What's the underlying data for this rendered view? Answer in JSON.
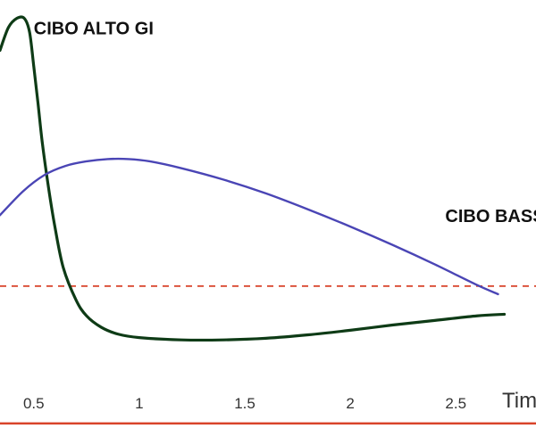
{
  "chart_data": {
    "type": "line",
    "xlabel": "Tim",
    "ylabel": "",
    "xlim": [
      0.34,
      2.88
    ],
    "ylim": [
      -0.62,
      1.25
    ],
    "grid": false,
    "legend": "none",
    "x_ticks": [
      {
        "value": 0.5,
        "label": "0.5"
      },
      {
        "value": 1,
        "label": "1"
      },
      {
        "value": 1.5,
        "label": "1.5"
      },
      {
        "value": 2,
        "label": "2"
      },
      {
        "value": 2.5,
        "label": "2.5"
      }
    ],
    "series": [
      {
        "name": "CIBO ALTO GI",
        "color": "#0e3b16",
        "x": [
          0.34,
          0.38,
          0.42,
          0.455,
          0.48,
          0.5,
          0.52,
          0.54,
          0.57,
          0.6,
          0.64,
          0.7,
          0.75,
          0.82,
          0.9,
          1.0,
          1.2,
          1.4,
          1.6,
          1.8,
          2.0,
          2.2,
          2.4,
          2.6,
          2.73
        ],
        "y": [
          1.03,
          1.13,
          1.17,
          1.17,
          1.11,
          0.96,
          0.8,
          0.63,
          0.43,
          0.26,
          0.08,
          -0.06,
          -0.13,
          -0.18,
          -0.21,
          -0.225,
          -0.235,
          -0.235,
          -0.228,
          -0.213,
          -0.193,
          -0.17,
          -0.15,
          -0.13,
          -0.123
        ]
      },
      {
        "name": "CIBO BASSO GI",
        "color": "#4a45b5",
        "x": [
          0.34,
          0.45,
          0.55,
          0.65,
          0.75,
          0.85,
          0.95,
          1.05,
          1.2,
          1.4,
          1.6,
          1.8,
          2.0,
          2.2,
          2.4,
          2.6,
          2.7
        ],
        "y": [
          0.31,
          0.415,
          0.485,
          0.525,
          0.545,
          0.555,
          0.555,
          0.545,
          0.515,
          0.465,
          0.405,
          0.335,
          0.26,
          0.18,
          0.095,
          0.005,
          -0.035
        ]
      }
    ],
    "reference_lines": [
      {
        "y": 0,
        "style": "dashed",
        "color": "#d9432a"
      },
      {
        "y": -0.6,
        "style": "solid",
        "color": "#d9432a"
      }
    ],
    "annotations": [
      {
        "text": "CIBO ALTO GI",
        "x": 0.5,
        "y": 1.1,
        "series": 0
      },
      {
        "text": "CIBO BASSO GI",
        "x": 2.45,
        "y": 0.28,
        "series": 1
      }
    ]
  }
}
